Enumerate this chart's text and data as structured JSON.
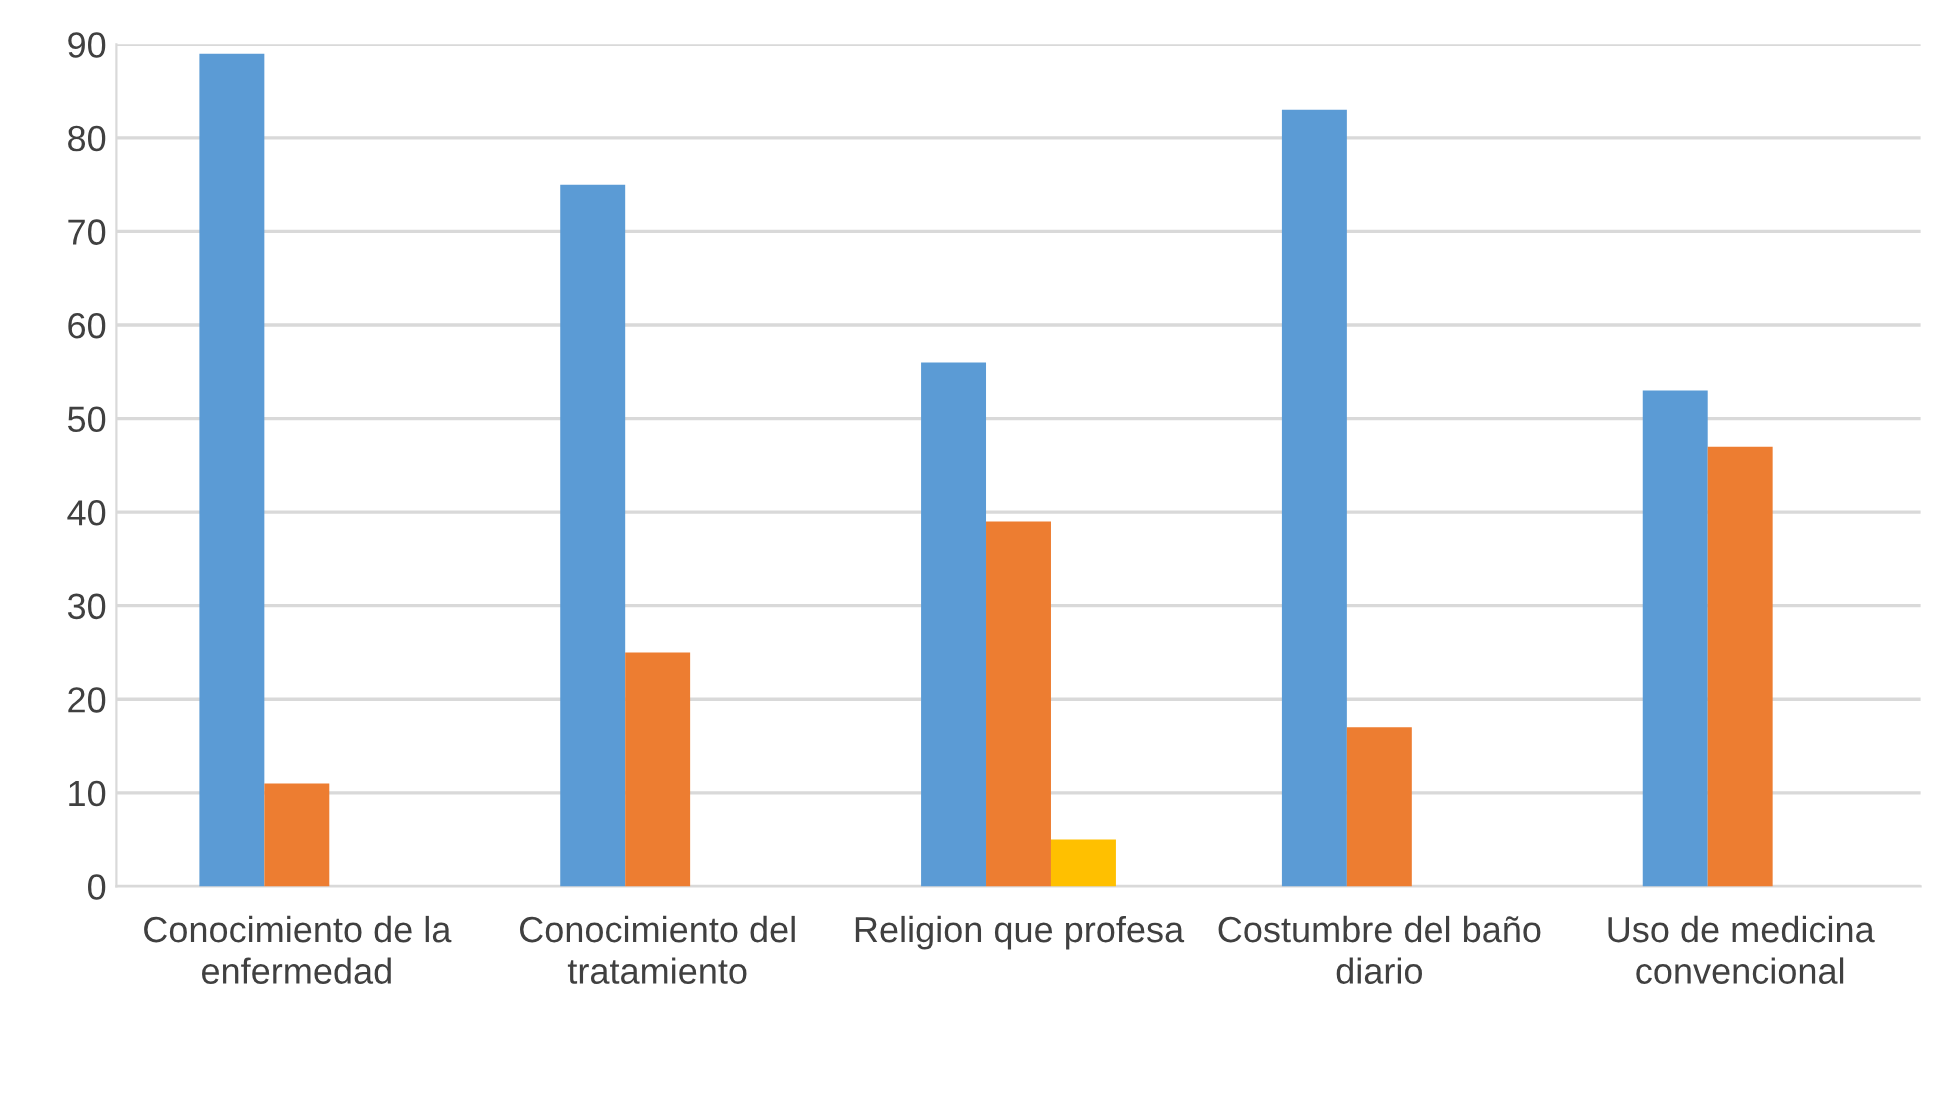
{
  "chart_data": {
    "type": "bar",
    "categories": [
      "Conocimiento de la enfermedad",
      "Conocimiento del tratamiento",
      "Religion que profesa",
      "Costumbre del baño diario",
      "Uso de medicina convencional"
    ],
    "series": [
      {
        "color": "#5b9bd5",
        "values": [
          89,
          75,
          56,
          83,
          53
        ]
      },
      {
        "color": "#ed7d31",
        "values": [
          11,
          25,
          39,
          17,
          47
        ]
      },
      {
        "color": "#ffc000",
        "values": [
          null,
          null,
          5,
          null,
          null
        ]
      }
    ],
    "ylim": [
      0,
      90
    ],
    "yticks": [
      0,
      10,
      20,
      30,
      40,
      50,
      60,
      70,
      80,
      90
    ],
    "grid": "y",
    "legend": false
  }
}
